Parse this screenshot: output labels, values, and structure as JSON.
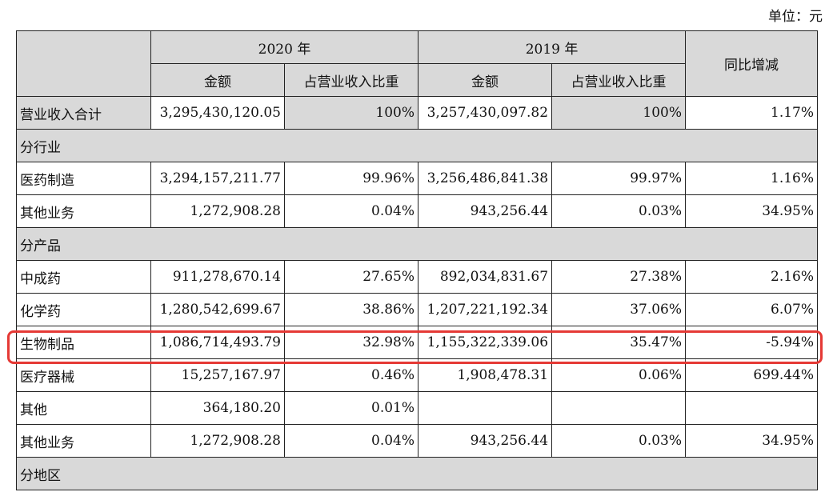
{
  "unit_label": "单位：元",
  "header": {
    "year_2020": "2020 年",
    "year_2019": "2019 年",
    "yoy": "同比增减",
    "amount": "金额",
    "share": "占营业收入比重"
  },
  "rows": [
    {
      "label": "营业收入合计",
      "amt2020": "3,295,430,120.05",
      "pct2020": "100%",
      "amt2019": "3,257,430,097.82",
      "pct2019": "100%",
      "yoy": "1.17%"
    },
    {
      "section": "分行业"
    },
    {
      "label": "医药制造",
      "amt2020": "3,294,157,211.77",
      "pct2020": "99.96%",
      "amt2019": "3,256,486,841.38",
      "pct2019": "99.97%",
      "yoy": "1.16%"
    },
    {
      "label": "其他业务",
      "amt2020": "1,272,908.28",
      "pct2020": "0.04%",
      "amt2019": "943,256.44",
      "pct2019": "0.03%",
      "yoy": "34.95%"
    },
    {
      "section": "分产品"
    },
    {
      "label": "中成药",
      "amt2020": "911,278,670.14",
      "pct2020": "27.65%",
      "amt2019": "892,034,831.67",
      "pct2019": "27.38%",
      "yoy": "2.16%"
    },
    {
      "label": "化学药",
      "amt2020": "1,280,542,699.67",
      "pct2020": "38.86%",
      "amt2019": "1,207,221,192.34",
      "pct2019": "37.06%",
      "yoy": "6.07%"
    },
    {
      "label": "生物制品",
      "amt2020": "1,086,714,493.79",
      "pct2020": "32.98%",
      "amt2019": "1,155,322,339.06",
      "pct2019": "35.47%",
      "yoy": "-5.94%"
    },
    {
      "label": "医疗器械",
      "amt2020": "15,257,167.97",
      "pct2020": "0.46%",
      "amt2019": "1,908,478.31",
      "pct2019": "0.06%",
      "yoy": "699.44%"
    },
    {
      "label": "其他",
      "amt2020": "364,180.20",
      "pct2020": "0.01%",
      "amt2019": "",
      "pct2019": "",
      "yoy": ""
    },
    {
      "label": "其他业务",
      "amt2020": "1,272,908.28",
      "pct2020": "0.04%",
      "amt2019": "943,256.44",
      "pct2019": "0.03%",
      "yoy": "34.95%"
    },
    {
      "section": "分地区"
    }
  ],
  "highlight": {
    "row_label": "生物制品",
    "color": "#e53935"
  },
  "colors": {
    "header_bg": "#d9d9d9",
    "border": "#222222"
  }
}
